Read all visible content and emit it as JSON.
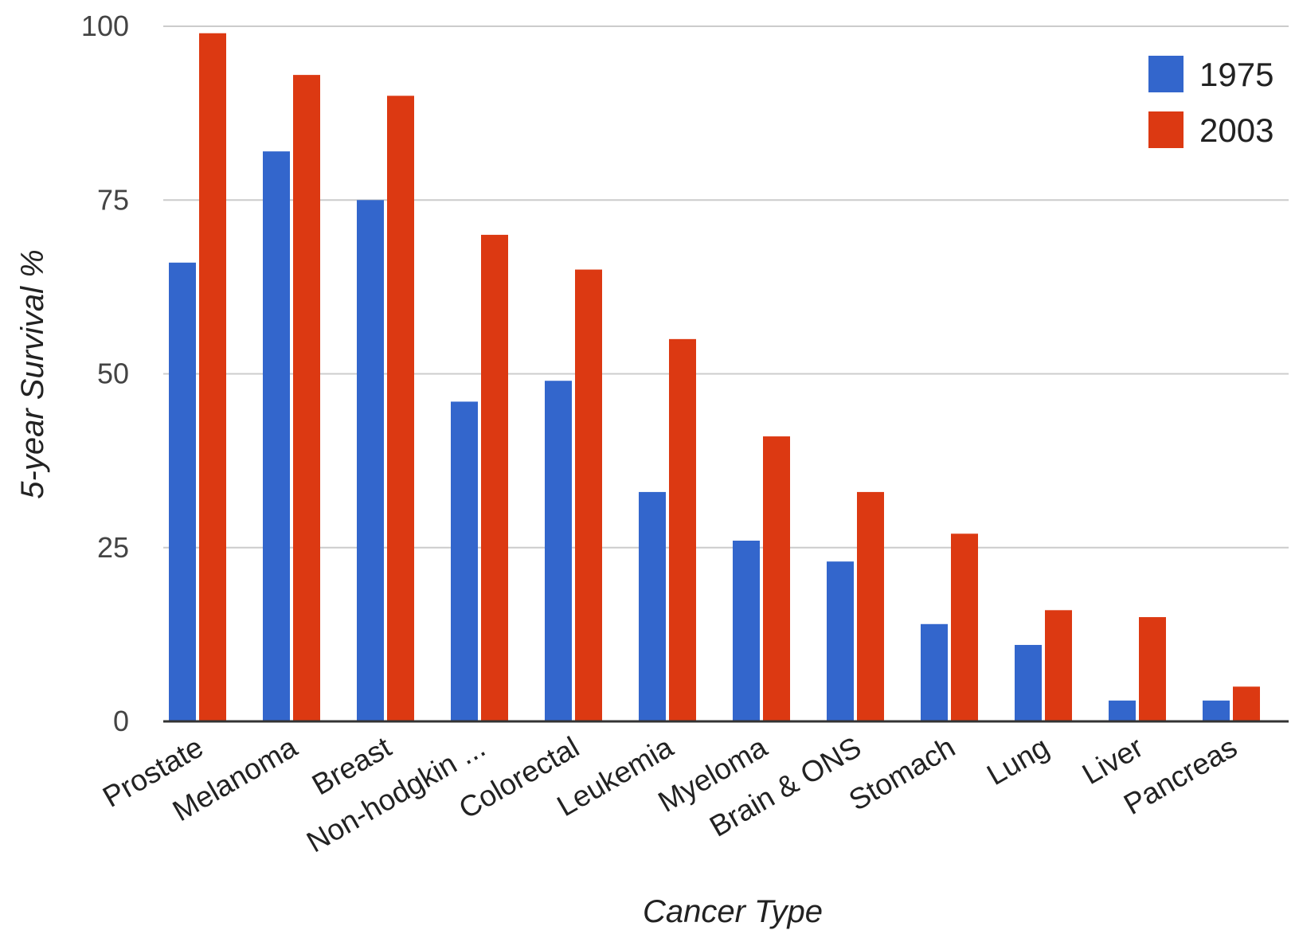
{
  "chart_data": {
    "type": "bar",
    "categories": [
      "Prostate",
      "Melanoma",
      "Breast",
      "Non-hodgkin ...",
      "Colorectal",
      "Leukemia",
      "Myeloma",
      "Brain & ONS",
      "Stomach",
      "Lung",
      "Liver",
      "Pancreas"
    ],
    "series": [
      {
        "name": "1975",
        "color": "#3366cc",
        "values": [
          66,
          82,
          75,
          46,
          49,
          33,
          26,
          23,
          14,
          11,
          3,
          3
        ]
      },
      {
        "name": "2003",
        "color": "#dc3912",
        "values": [
          99,
          93,
          90,
          70,
          65,
          55,
          41,
          33,
          27,
          16,
          15,
          5
        ]
      }
    ],
    "title": "",
    "xlabel": "Cancer Type",
    "ylabel": "5-year Survival %",
    "ylim": [
      0,
      100
    ],
    "yticks": [
      0,
      25,
      50,
      75,
      100
    ],
    "grid": true,
    "legend_position": "top-right"
  }
}
